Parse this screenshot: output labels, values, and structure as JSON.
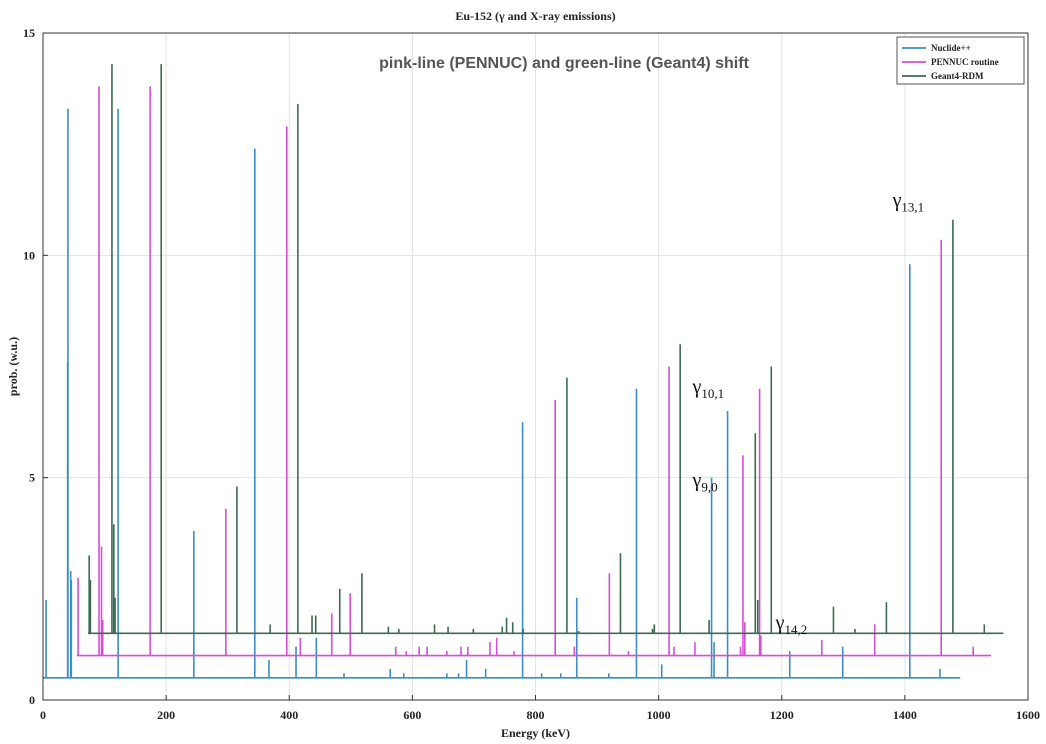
{
  "chart_data": {
    "type": "line",
    "title": "Eu-152 (γ and X-ray emissions)",
    "xlabel": "Energy (keV)",
    "ylabel": "prob. (w.u.)",
    "xlim": [
      0,
      1600
    ],
    "ylim": [
      0,
      15
    ],
    "xticks": [
      "0",
      "200",
      "400",
      "600",
      "800",
      "1000",
      "1200",
      "1400",
      "1600"
    ],
    "yticks": [
      "0",
      "5",
      "10",
      "15"
    ],
    "grid": true,
    "legend_position": "top-right",
    "annotations": {
      "shift_note": "pink-line (PENNUC) and green-line (Geant4) shift",
      "gammas": [
        {
          "base": "γ",
          "sub": "10,1",
          "x": 1055,
          "y": 6.9
        },
        {
          "base": "γ",
          "sub": "9,0",
          "x": 1055,
          "y": 4.8
        },
        {
          "base": "γ",
          "sub": "14,2",
          "x": 1190,
          "y": 1.6
        },
        {
          "base": "γ",
          "sub": "13,1",
          "x": 1380,
          "y": 11.1
        }
      ]
    },
    "series": [
      {
        "name": "Nuclide++",
        "color": "#3a8ec4",
        "baseline": 0.5,
        "x_range": [
          0,
          1490
        ],
        "peaks": [
          [
            5,
            2.25
          ],
          [
            40,
            7.6
          ],
          [
            40.5,
            13.3
          ],
          [
            45,
            2.9
          ],
          [
            46,
            2.7
          ],
          [
            122,
            13.3
          ],
          [
            245,
            3.8
          ],
          [
            344,
            12.4
          ],
          [
            367,
            0.9
          ],
          [
            411,
            1.2
          ],
          [
            444,
            1.4
          ],
          [
            489,
            0.6
          ],
          [
            564,
            0.7
          ],
          [
            586,
            0.6
          ],
          [
            656,
            0.6
          ],
          [
            675,
            0.6
          ],
          [
            688,
            0.9
          ],
          [
            719,
            0.7
          ],
          [
            779,
            6.25
          ],
          [
            810,
            0.6
          ],
          [
            841,
            0.6
          ],
          [
            867,
            2.3
          ],
          [
            919,
            0.6
          ],
          [
            964,
            7.0
          ],
          [
            1005,
            0.8
          ],
          [
            1086,
            5.0
          ],
          [
            1090,
            1.3
          ],
          [
            1112,
            6.5
          ],
          [
            1213,
            1.1
          ],
          [
            1299,
            1.2
          ],
          [
            1408,
            9.8
          ],
          [
            1457,
            0.7
          ]
        ]
      },
      {
        "name": "PENNUC routine",
        "color": "#d44fd1",
        "baseline": 1.0,
        "x_range": [
          55,
          1540
        ],
        "peaks": [
          [
            57,
            2.75
          ],
          [
            91,
            13.8
          ],
          [
            95,
            3.45
          ],
          [
            97,
            1.8
          ],
          [
            174,
            13.8
          ],
          [
            297,
            4.3
          ],
          [
            396,
            12.9
          ],
          [
            418,
            1.4
          ],
          [
            469,
            1.95
          ],
          [
            499,
            2.4
          ],
          [
            573,
            1.2
          ],
          [
            590,
            1.1
          ],
          [
            611,
            1.2
          ],
          [
            624,
            1.2
          ],
          [
            656,
            1.1
          ],
          [
            679,
            1.2
          ],
          [
            690,
            1.2
          ],
          [
            726,
            1.3
          ],
          [
            737,
            1.4
          ],
          [
            765,
            1.1
          ],
          [
            832,
            6.75
          ],
          [
            863,
            1.2
          ],
          [
            920,
            2.85
          ],
          [
            951,
            1.1
          ],
          [
            1017,
            7.5
          ],
          [
            1025,
            1.2
          ],
          [
            1059,
            1.3
          ],
          [
            1133,
            1.2
          ],
          [
            1137,
            5.5
          ],
          [
            1140,
            1.75
          ],
          [
            1164,
            7.0
          ],
          [
            1166,
            1.45
          ],
          [
            1265,
            1.35
          ],
          [
            1351,
            1.7
          ],
          [
            1459,
            10.35
          ],
          [
            1511,
            1.2
          ]
        ]
      },
      {
        "name": "Geant4-RDM",
        "color": "#3d6b52",
        "baseline": 1.5,
        "x_range": [
          73,
          1560
        ],
        "peaks": [
          [
            75,
            3.25
          ],
          [
            77,
            2.7
          ],
          [
            112,
            14.3
          ],
          [
            115,
            3.95
          ],
          [
            117,
            2.3
          ],
          [
            192,
            14.3
          ],
          [
            315,
            4.8
          ],
          [
            369,
            1.7
          ],
          [
            414,
            13.4
          ],
          [
            437,
            1.9
          ],
          [
            443,
            1.9
          ],
          [
            482,
            2.5
          ],
          [
            518,
            2.85
          ],
          [
            561,
            1.65
          ],
          [
            578,
            1.6
          ],
          [
            636,
            1.7
          ],
          [
            658,
            1.65
          ],
          [
            699,
            1.6
          ],
          [
            746,
            1.65
          ],
          [
            753,
            1.85
          ],
          [
            763,
            1.75
          ],
          [
            780,
            1.6
          ],
          [
            851,
            7.25
          ],
          [
            870,
            1.55
          ],
          [
            938,
            3.3
          ],
          [
            990,
            1.6
          ],
          [
            993,
            1.7
          ],
          [
            1035,
            8.0
          ],
          [
            1082,
            1.8
          ],
          [
            1157,
            6.0
          ],
          [
            1161,
            2.25
          ],
          [
            1183,
            7.5
          ],
          [
            1284,
            2.1
          ],
          [
            1319,
            1.6
          ],
          [
            1370,
            2.2
          ],
          [
            1478,
            10.8
          ],
          [
            1529,
            1.7
          ]
        ]
      }
    ]
  }
}
